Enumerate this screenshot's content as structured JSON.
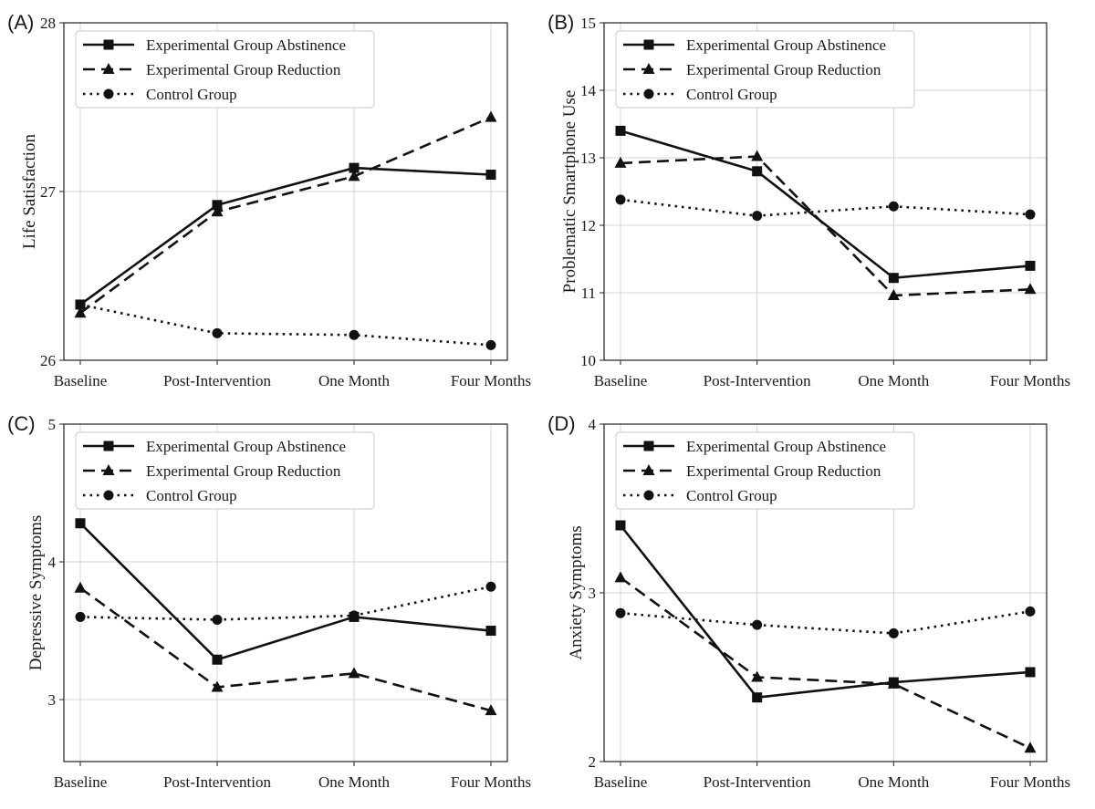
{
  "categories": [
    "Baseline",
    "Post-Intervention",
    "One Month",
    "Four Months"
  ],
  "legend": [
    "Experimental Group Abstinence",
    "Experimental Group Reduction",
    "Control Group"
  ],
  "chart_data": [
    {
      "type": "line",
      "panel": "(A)",
      "ylabel": "Life Satisfaction",
      "ylim": [
        26,
        28
      ],
      "yticks": [
        "26",
        "27",
        "28"
      ],
      "categories": [
        "Baseline",
        "Post-Intervention",
        "One Month",
        "Four Months"
      ],
      "series": [
        {
          "name": "Experimental Group Abstinence",
          "values": [
            26.33,
            26.92,
            27.14,
            27.1
          ]
        },
        {
          "name": "Experimental Group Reduction",
          "values": [
            26.28,
            26.88,
            27.09,
            27.44
          ]
        },
        {
          "name": "Control Group",
          "values": [
            26.33,
            26.16,
            26.15,
            26.09
          ]
        }
      ],
      "grid": true,
      "legend_position": "top-left"
    },
    {
      "type": "line",
      "panel": "(B)",
      "ylabel": "Problematic Smartphone Use",
      "ylim": [
        10,
        15
      ],
      "yticks": [
        "10",
        "11",
        "12",
        "13",
        "14",
        "15"
      ],
      "categories": [
        "Baseline",
        "Post-Intervention",
        "One Month",
        "Four Months"
      ],
      "series": [
        {
          "name": "Experimental Group Abstinence",
          "values": [
            13.4,
            12.8,
            11.22,
            11.4
          ]
        },
        {
          "name": "Experimental Group Reduction",
          "values": [
            12.92,
            13.02,
            10.96,
            11.05
          ]
        },
        {
          "name": "Control Group",
          "values": [
            12.38,
            12.14,
            12.28,
            12.16
          ]
        }
      ],
      "grid": true,
      "legend_position": "top-left"
    },
    {
      "type": "line",
      "panel": "(C)",
      "ylabel": "Depressive Symptoms",
      "ylim": [
        2.55,
        5
      ],
      "yticks": [
        "3",
        "4",
        "5"
      ],
      "categories": [
        "Baseline",
        "Post-Intervention",
        "One Month",
        "Four Months"
      ],
      "series": [
        {
          "name": "Experimental Group Abstinence",
          "values": [
            4.28,
            3.29,
            3.6,
            3.5
          ]
        },
        {
          "name": "Experimental Group Reduction",
          "values": [
            3.81,
            3.09,
            3.19,
            2.92
          ]
        },
        {
          "name": "Control Group",
          "values": [
            3.6,
            3.58,
            3.61,
            3.82
          ]
        }
      ],
      "grid": true,
      "legend_position": "top-left"
    },
    {
      "type": "line",
      "panel": "(D)",
      "ylabel": "Anxiety Symptoms",
      "ylim": [
        2,
        4
      ],
      "yticks": [
        "2",
        "3",
        "4"
      ],
      "categories": [
        "Baseline",
        "Post-Intervention",
        "One Month",
        "Four Months"
      ],
      "series": [
        {
          "name": "Experimental Group Abstinence",
          "values": [
            3.4,
            2.38,
            2.47,
            2.53
          ]
        },
        {
          "name": "Experimental Group Reduction",
          "values": [
            3.09,
            2.5,
            2.46,
            2.08
          ]
        },
        {
          "name": "Control Group",
          "values": [
            2.88,
            2.81,
            2.76,
            2.89
          ]
        }
      ],
      "grid": true,
      "legend_position": "top-left"
    }
  ]
}
